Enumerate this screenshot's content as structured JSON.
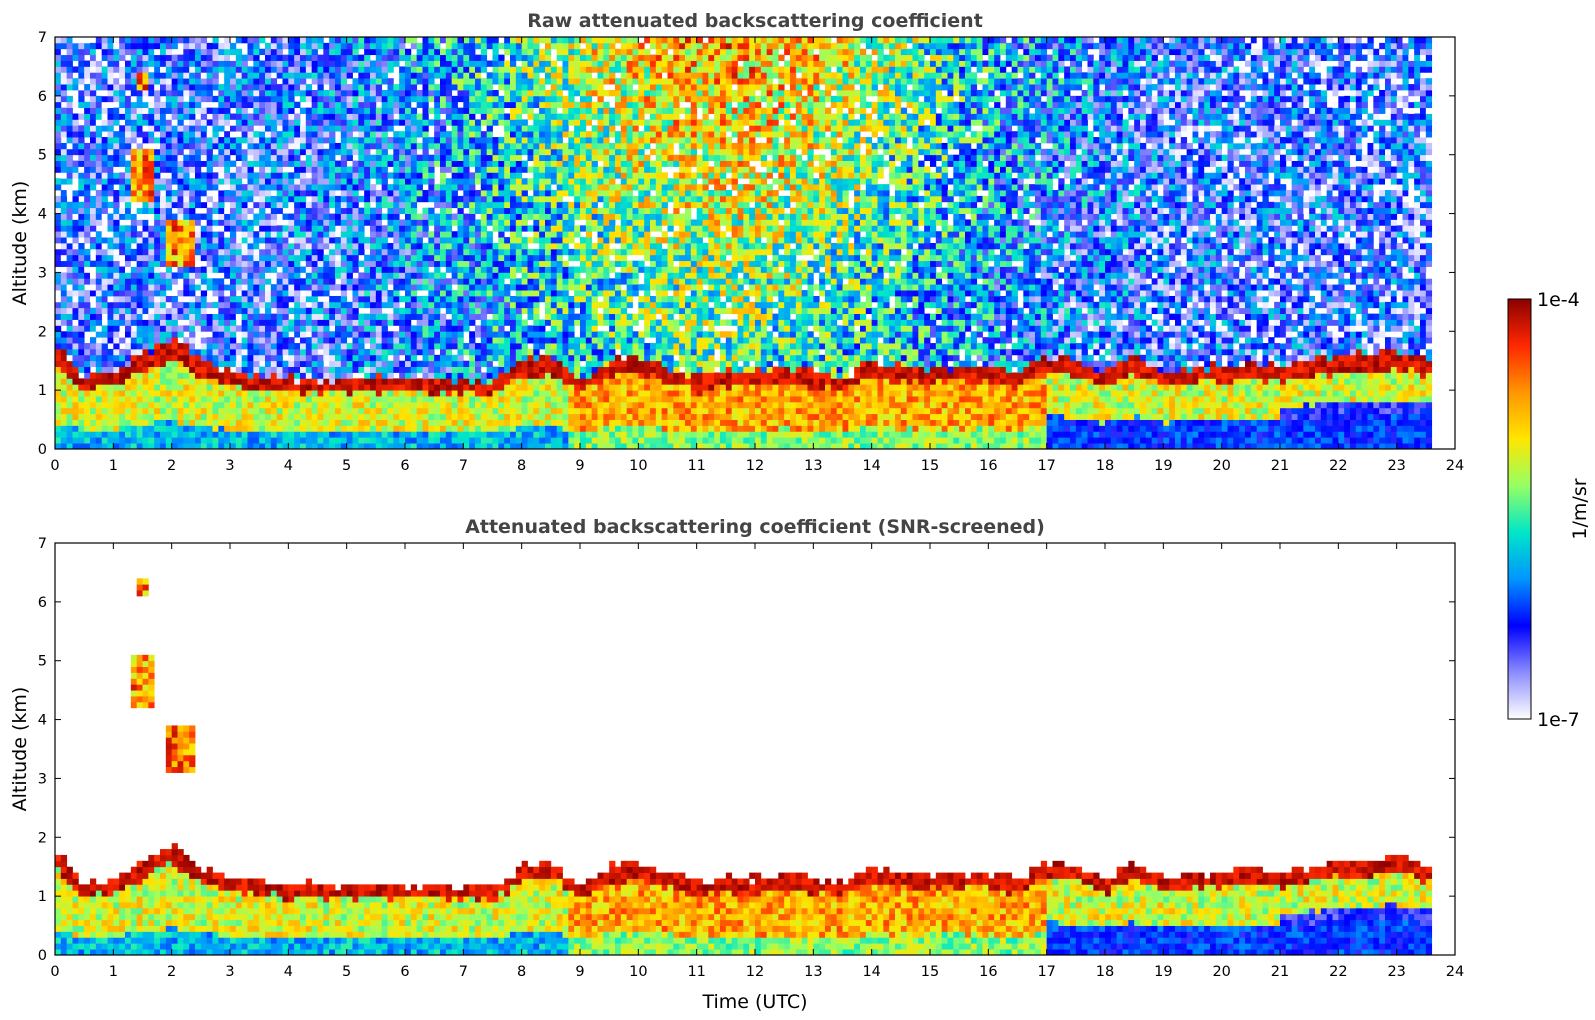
{
  "chart_data": [
    {
      "type": "heatmap",
      "title": "Raw attenuated backscattering coefficient",
      "xlabel": "",
      "ylabel": "Altitude (km)",
      "xlim": [
        0,
        24
      ],
      "ylim": [
        0,
        7
      ],
      "xticks": [
        "0",
        "1",
        "2",
        "3",
        "4",
        "5",
        "6",
        "7",
        "8",
        "9",
        "10",
        "11",
        "12",
        "13",
        "14",
        "15",
        "16",
        "17",
        "18",
        "19",
        "20",
        "21",
        "22",
        "23",
        "24"
      ],
      "yticks": [
        "0",
        "1",
        "2",
        "3",
        "4",
        "5",
        "6",
        "7"
      ],
      "data_end_time": 23.6,
      "screened": false,
      "layer_top_km": [
        [
          0,
          1.8
        ],
        [
          0.5,
          1.2
        ],
        [
          1,
          1.3
        ],
        [
          1.5,
          1.6
        ],
        [
          2,
          1.9
        ],
        [
          2.5,
          1.5
        ],
        [
          3,
          1.35
        ],
        [
          3.5,
          1.25
        ],
        [
          4,
          1.2
        ],
        [
          4.5,
          1.2
        ],
        [
          5,
          1.2
        ],
        [
          5.5,
          1.2
        ],
        [
          6,
          1.2
        ],
        [
          6.5,
          1.2
        ],
        [
          7,
          1.15
        ],
        [
          7.5,
          1.15
        ],
        [
          8,
          1.5
        ],
        [
          8.5,
          1.6
        ],
        [
          9,
          1.2
        ],
        [
          9.5,
          1.5
        ],
        [
          10,
          1.6
        ],
        [
          10.5,
          1.4
        ],
        [
          11,
          1.2
        ],
        [
          11.5,
          1.3
        ],
        [
          12,
          1.3
        ],
        [
          12.5,
          1.4
        ],
        [
          13,
          1.3
        ],
        [
          13.5,
          1.2
        ],
        [
          14,
          1.5
        ],
        [
          14.5,
          1.4
        ],
        [
          15,
          1.4
        ],
        [
          15.5,
          1.4
        ],
        [
          16,
          1.4
        ],
        [
          16.5,
          1.3
        ],
        [
          17,
          1.6
        ],
        [
          17.5,
          1.5
        ],
        [
          18,
          1.3
        ],
        [
          18.5,
          1.6
        ],
        [
          19,
          1.3
        ],
        [
          19.5,
          1.4
        ],
        [
          20,
          1.4
        ],
        [
          20.5,
          1.5
        ],
        [
          21,
          1.4
        ],
        [
          21.5,
          1.5
        ],
        [
          22,
          1.6
        ],
        [
          22.5,
          1.6
        ],
        [
          23,
          1.7
        ],
        [
          23.6,
          1.5
        ]
      ],
      "elevated_plumes": [
        {
          "t_start": 1.3,
          "t_end": 1.65,
          "alt_bottom_km": 4.2,
          "alt_top_km": 5.1
        },
        {
          "t_start": 1.95,
          "t_end": 2.35,
          "alt_bottom_km": 3.1,
          "alt_top_km": 3.9
        },
        {
          "t_start": 1.4,
          "t_end": 1.6,
          "alt_bottom_km": 6.1,
          "alt_top_km": 6.4
        }
      ]
    },
    {
      "type": "heatmap",
      "title": "Attenuated backscattering coefficient (SNR-screened)",
      "xlabel": "Time (UTC)",
      "ylabel": "Altitude (km)",
      "xlim": [
        0,
        24
      ],
      "ylim": [
        0,
        7
      ],
      "xticks": [
        "0",
        "1",
        "2",
        "3",
        "4",
        "5",
        "6",
        "7",
        "8",
        "9",
        "10",
        "11",
        "12",
        "13",
        "14",
        "15",
        "16",
        "17",
        "18",
        "19",
        "20",
        "21",
        "22",
        "23",
        "24"
      ],
      "yticks": [
        "0",
        "1",
        "2",
        "3",
        "4",
        "5",
        "6",
        "7"
      ],
      "data_end_time": 23.6,
      "screened": true
    }
  ],
  "colorbar": {
    "label": "1/m/sr",
    "max_label": "1e-4",
    "min_label": "1e-7",
    "scale": "log",
    "colors": [
      "#ffffff",
      "#8c8cff",
      "#0000ff",
      "#0096ff",
      "#00e6c8",
      "#96ff64",
      "#ffe600",
      "#ff9600",
      "#ff2800",
      "#8c0000"
    ]
  }
}
